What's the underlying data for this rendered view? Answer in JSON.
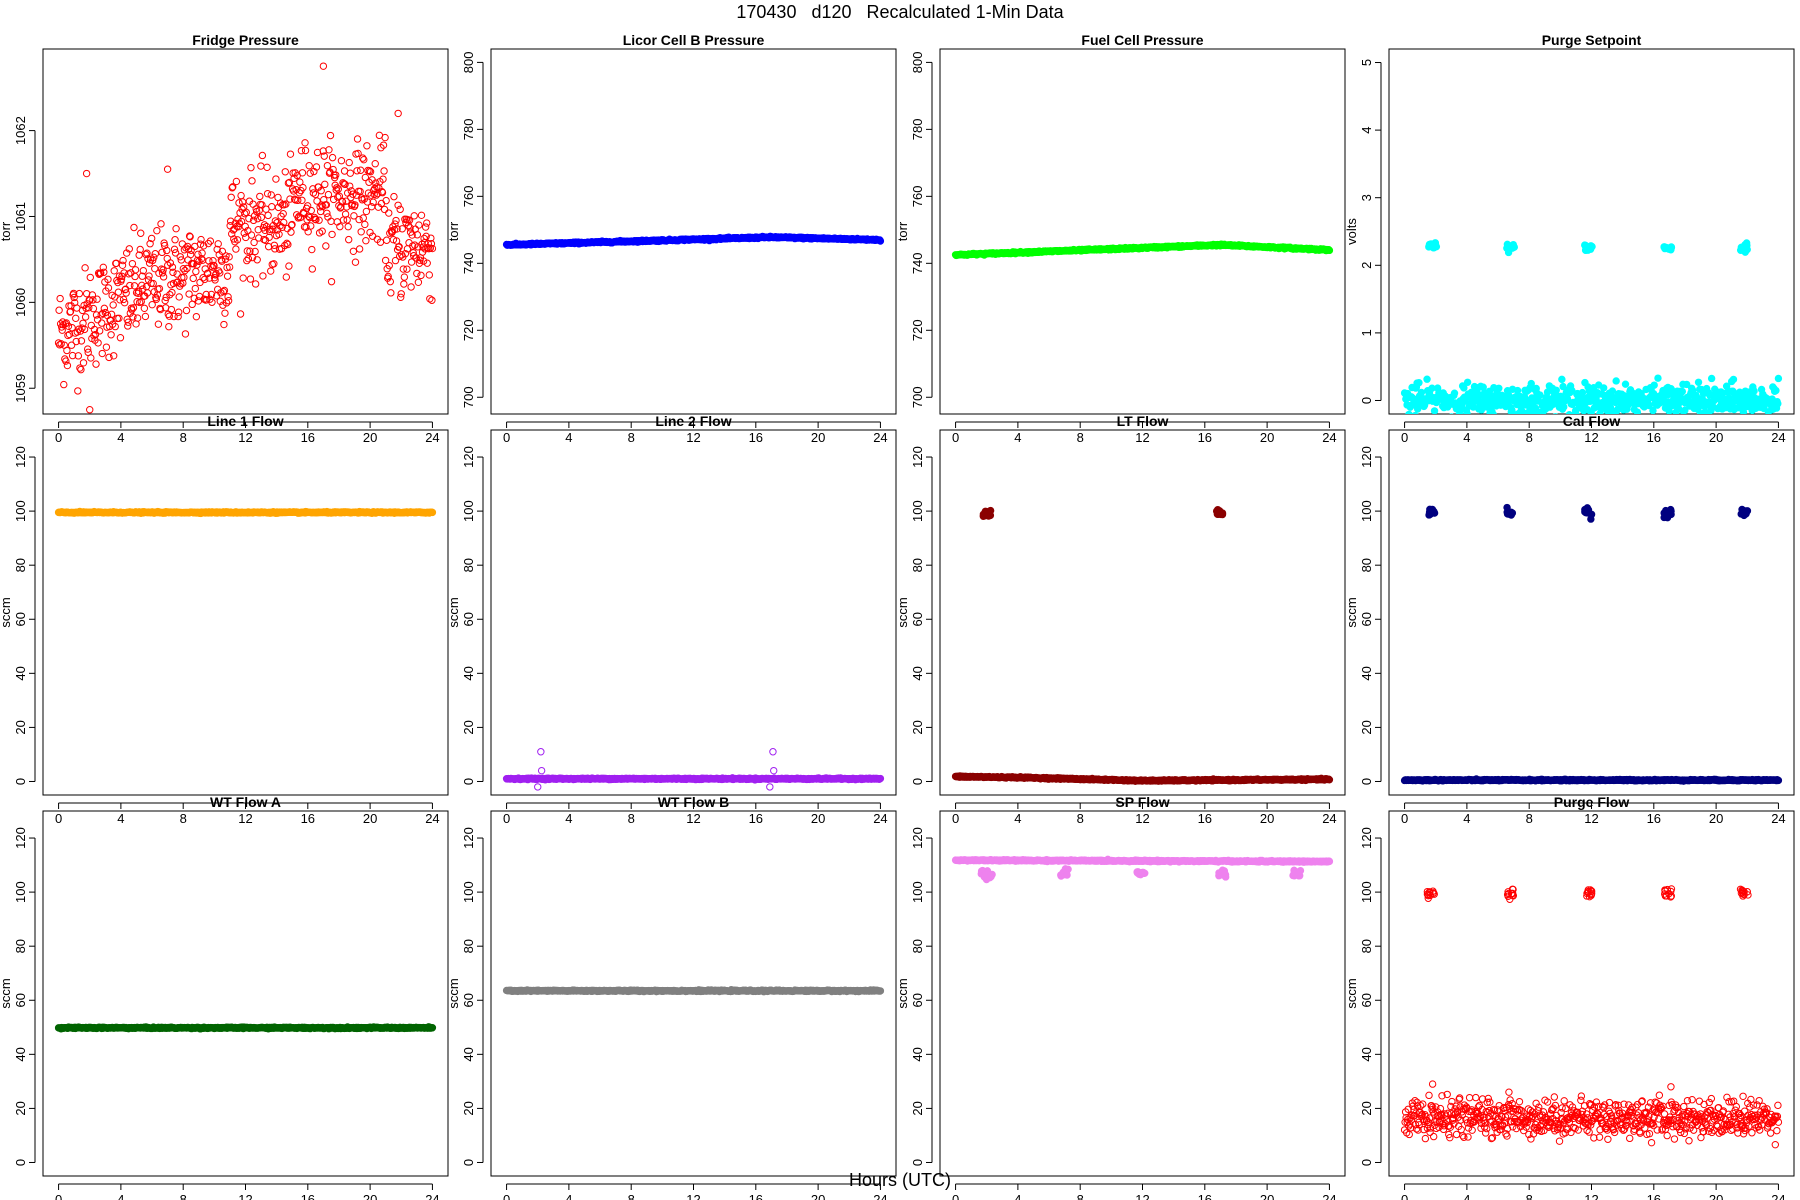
{
  "figure": {
    "title": "170430   d120   Recalculated 1-Min Data",
    "xlabel": "Hours (UTC)"
  },
  "chart_data": [
    {
      "type": "scatter",
      "title": "Fridge Pressure",
      "ylabel": "torr",
      "color": "#ff0000",
      "marker": "open",
      "xlim": [
        -1,
        25
      ],
      "xticks": [
        0,
        4,
        8,
        12,
        16,
        20,
        24
      ],
      "ylim": [
        1058.7,
        1062.95
      ],
      "yticks": [
        1059,
        1060,
        1061,
        1062
      ],
      "series": [
        {
          "x": [
            0,
            24
          ],
          "y": [
            1059.6,
            1060.7
          ],
          "noise": 0.35,
          "trend": "rise",
          "extras": [
            {
              "x": 17.0,
              "y": 1062.75
            },
            {
              "x": 2.0,
              "y": 1058.75
            },
            {
              "x": 1.8,
              "y": 1061.5
            },
            {
              "x": 7.0,
              "y": 1061.55
            },
            {
              "x": 21.8,
              "y": 1062.2
            }
          ]
        }
      ]
    },
    {
      "type": "scatter",
      "title": "Licor Cell B Pressure",
      "ylabel": "torr",
      "color": "#0000ff",
      "marker": "filled",
      "xlim": [
        -1,
        25
      ],
      "xticks": [
        0,
        4,
        8,
        12,
        16,
        20,
        24
      ],
      "ylim": [
        695,
        804
      ],
      "yticks": [
        700,
        720,
        740,
        760,
        780,
        800
      ],
      "series": [
        {
          "x": [
            0,
            17,
            24
          ],
          "y": [
            745.5,
            747.8,
            747.0
          ]
        }
      ]
    },
    {
      "type": "scatter",
      "title": "Fuel Cell Pressure",
      "ylabel": "torr",
      "color": "#00ff00",
      "marker": "filled",
      "xlim": [
        -1,
        25
      ],
      "xticks": [
        0,
        4,
        8,
        12,
        16,
        20,
        24
      ],
      "ylim": [
        695,
        804
      ],
      "yticks": [
        700,
        720,
        740,
        760,
        780,
        800
      ],
      "series": [
        {
          "x": [
            0,
            17,
            24
          ],
          "y": [
            742.5,
            745.5,
            744.0
          ]
        }
      ]
    },
    {
      "type": "scatter",
      "title": "Purge Setpoint",
      "ylabel": "volts",
      "color": "#00ffff",
      "marker": "filled",
      "xlim": [
        -1,
        25
      ],
      "xticks": [
        0,
        4,
        8,
        12,
        16,
        20,
        24
      ],
      "ylim": [
        -0.2,
        5.2
      ],
      "yticks": [
        0,
        1,
        2,
        3,
        4,
        5
      ],
      "series": [
        {
          "x": [
            0,
            24
          ],
          "y": [
            0,
            0
          ]
        }
      ],
      "clusters": [
        {
          "x": 1.8,
          "y": 2.28
        },
        {
          "x": 6.8,
          "y": 2.27
        },
        {
          "x": 11.8,
          "y": 2.24
        },
        {
          "x": 16.9,
          "y": 2.24
        },
        {
          "x": 21.8,
          "y": 2.26
        }
      ]
    },
    {
      "type": "scatter",
      "title": "Line 1 Flow",
      "ylabel": "sccm",
      "color": "#ffa500",
      "marker": "filled",
      "xlim": [
        -1,
        25
      ],
      "xticks": [
        0,
        4,
        8,
        12,
        16,
        20,
        24
      ],
      "ylim": [
        -5,
        130
      ],
      "yticks": [
        0,
        20,
        40,
        60,
        80,
        100,
        120
      ],
      "series": [
        {
          "x": [
            0,
            24
          ],
          "y": [
            99.5,
            99.5
          ]
        }
      ]
    },
    {
      "type": "scatter",
      "title": "Line 2 Flow",
      "ylabel": "sccm",
      "color": "#a020f0",
      "marker": "filled",
      "xlim": [
        -1,
        25
      ],
      "xticks": [
        0,
        4,
        8,
        12,
        16,
        20,
        24
      ],
      "ylim": [
        -5,
        130
      ],
      "yticks": [
        0,
        20,
        40,
        60,
        80,
        100,
        120
      ],
      "series": [
        {
          "x": [
            0,
            24
          ],
          "y": [
            1.0,
            1.0
          ]
        }
      ],
      "outliers": [
        {
          "x": 2.2,
          "y": 11
        },
        {
          "x": 2.25,
          "y": 4
        },
        {
          "x": 2.0,
          "y": -2
        },
        {
          "x": 17.1,
          "y": 11
        },
        {
          "x": 17.15,
          "y": 4
        },
        {
          "x": 16.9,
          "y": -2
        }
      ]
    },
    {
      "type": "scatter",
      "title": "LT Flow",
      "ylabel": "sccm",
      "color": "#8b0000",
      "marker": "filled",
      "xlim": [
        -1,
        25
      ],
      "xticks": [
        0,
        4,
        8,
        12,
        16,
        20,
        24
      ],
      "ylim": [
        -5,
        130
      ],
      "yticks": [
        0,
        20,
        40,
        60,
        80,
        100,
        120
      ],
      "series": [
        {
          "x": [
            0,
            4,
            12,
            24
          ],
          "y": [
            1.8,
            1.5,
            0.3,
            0.8
          ]
        }
      ],
      "clusters": [
        {
          "x": 2.0,
          "y": 99.5
        },
        {
          "x": 17.0,
          "y": 99.5
        }
      ]
    },
    {
      "type": "scatter",
      "title": "Cal Flow",
      "ylabel": "sccm",
      "color": "#000080",
      "marker": "filled",
      "xlim": [
        -1,
        25
      ],
      "xticks": [
        0,
        4,
        8,
        12,
        16,
        20,
        24
      ],
      "ylim": [
        -5,
        130
      ],
      "yticks": [
        0,
        20,
        40,
        60,
        80,
        100,
        120
      ],
      "series": [
        {
          "x": [
            0,
            24
          ],
          "y": [
            0.5,
            0.5
          ]
        }
      ],
      "clusters": [
        {
          "x": 1.8,
          "y": 99.5
        },
        {
          "x": 6.8,
          "y": 99.5
        },
        {
          "x": 11.8,
          "y": 99.5
        },
        {
          "x": 16.9,
          "y": 99.5
        },
        {
          "x": 21.8,
          "y": 99.5
        }
      ]
    },
    {
      "type": "scatter",
      "title": "WT Flow A",
      "ylabel": "sccm",
      "color": "#006400",
      "marker": "filled",
      "xlim": [
        -1,
        25
      ],
      "xticks": [
        0,
        4,
        8,
        12,
        16,
        20,
        24
      ],
      "ylim": [
        -5,
        130
      ],
      "yticks": [
        0,
        20,
        40,
        60,
        80,
        100,
        120
      ],
      "series": [
        {
          "x": [
            0,
            24
          ],
          "y": [
            49.8,
            49.8
          ]
        }
      ]
    },
    {
      "type": "scatter",
      "title": "WT Flow B",
      "ylabel": "sccm",
      "color": "#808080",
      "marker": "filled",
      "xlim": [
        -1,
        25
      ],
      "xticks": [
        0,
        4,
        8,
        12,
        16,
        20,
        24
      ],
      "ylim": [
        -5,
        130
      ],
      "yticks": [
        0,
        20,
        40,
        60,
        80,
        100,
        120
      ],
      "series": [
        {
          "x": [
            0,
            24
          ],
          "y": [
            63.5,
            63.5
          ]
        }
      ]
    },
    {
      "type": "scatter",
      "title": "SP Flow",
      "ylabel": "sccm",
      "color": "#ee82ee",
      "marker": "filled",
      "xlim": [
        -1,
        25
      ],
      "xticks": [
        0,
        4,
        8,
        12,
        16,
        20,
        24
      ],
      "ylim": [
        -5,
        130
      ],
      "yticks": [
        0,
        20,
        40,
        60,
        80,
        100,
        120
      ],
      "series": [
        {
          "x": [
            0,
            24
          ],
          "y": [
            111.8,
            111.3
          ]
        }
      ],
      "clusters": [
        {
          "x": 1.9,
          "y": 107
        },
        {
          "x": 2.1,
          "y": 105.5
        },
        {
          "x": 7.0,
          "y": 107
        },
        {
          "x": 11.9,
          "y": 107
        },
        {
          "x": 17.1,
          "y": 107
        },
        {
          "x": 21.9,
          "y": 107
        }
      ]
    },
    {
      "type": "scatter",
      "title": "Purge Flow",
      "ylabel": "sccm",
      "color": "#ff0000",
      "marker": "open",
      "xlim": [
        -1,
        25
      ],
      "xticks": [
        0,
        4,
        8,
        12,
        16,
        20,
        24
      ],
      "ylim": [
        -5,
        130
      ],
      "yticks": [
        0,
        20,
        40,
        60,
        80,
        100,
        120
      ],
      "series": [
        {
          "x": [
            0,
            24
          ],
          "y": [
            16.5,
            16.5
          ],
          "noise": 4.5,
          "extras": [
            {
              "x": 1.8,
              "y": 29
            },
            {
              "x": 17.1,
              "y": 28
            },
            {
              "x": 6.7,
              "y": 26
            }
          ]
        }
      ],
      "clusters": [
        {
          "x": 1.7,
          "y": 99.5
        },
        {
          "x": 6.8,
          "y": 99.5
        },
        {
          "x": 11.8,
          "y": 99.5
        },
        {
          "x": 16.9,
          "y": 99.5
        },
        {
          "x": 21.8,
          "y": 99.5
        }
      ]
    }
  ]
}
